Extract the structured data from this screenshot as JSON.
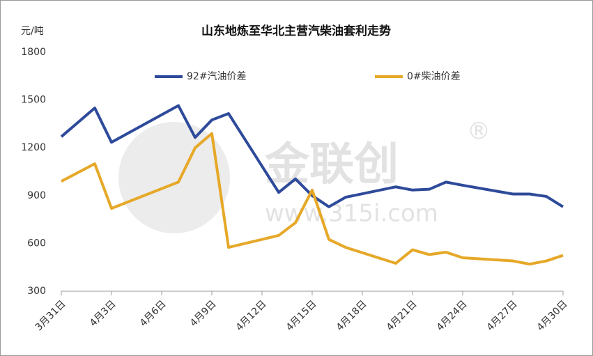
{
  "chart_data": {
    "type": "line",
    "title": "山东地炼至华北主营汽柴油套利走势",
    "y_label": "元/吨",
    "watermark": {
      "brand": "金联创",
      "url": "www.315i.com",
      "mark": "®"
    },
    "x": [
      "3月31日",
      "4月1日",
      "4月2日",
      "4月3日",
      "4月7日",
      "4月8日",
      "4月9日",
      "4月10日",
      "4月13日",
      "4月14日",
      "4月15日",
      "4月16日",
      "4月17日",
      "4月20日",
      "4月21日",
      "4月22日",
      "4月23日",
      "4月24日",
      "4月27日",
      "4月28日",
      "4月29日",
      "4月30日"
    ],
    "xticks": [
      "3月31日",
      "4月3日",
      "4月6日",
      "4月9日",
      "4月12日",
      "4月15日",
      "4月18日",
      "4月21日",
      "4月24日",
      "4月27日",
      "4月30日"
    ],
    "series": [
      {
        "name": "92#汽油价差",
        "color": "#2e4a9a",
        "values": [
          1270,
          1360,
          1450,
          1235,
          1465,
          1265,
          1375,
          1415,
          920,
          1005,
          900,
          830,
          890,
          955,
          935,
          940,
          985,
          965,
          910,
          910,
          895,
          830
        ]
      },
      {
        "name": "0#柴油价差",
        "color": "#e6a828",
        "values": [
          990,
          1045,
          1100,
          820,
          985,
          1200,
          1290,
          575,
          650,
          730,
          935,
          625,
          575,
          475,
          560,
          530,
          545,
          510,
          490,
          470,
          490,
          525
        ]
      }
    ],
    "ylim": [
      300,
      1800
    ],
    "yticks": [
      300,
      600,
      900,
      1200,
      1500,
      1800
    ],
    "grid": false,
    "legend": "top"
  }
}
